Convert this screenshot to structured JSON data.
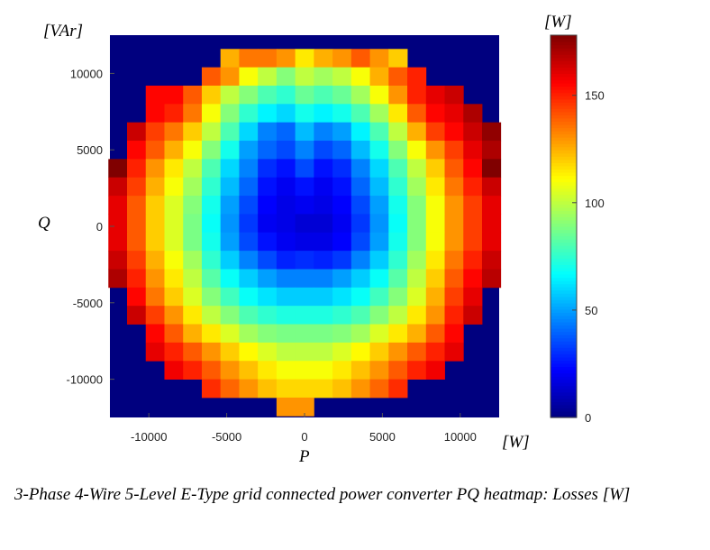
{
  "caption": "3-Phase 4-Wire 5-Level E-Type grid connected power converter PQ heatmap: Losses [W]",
  "chart_data": {
    "type": "heatmap",
    "title": "",
    "xlabel": "P",
    "ylabel": "Q",
    "x_unit": "[W]",
    "y_unit": "[VAr]",
    "colorbar_unit": "[W]",
    "colormap": "jet",
    "background_color": "#00007f",
    "xlim": [
      -12500,
      12500
    ],
    "ylim": [
      -12500,
      12500
    ],
    "x_ticks": [
      -10000,
      -5000,
      0,
      5000,
      10000
    ],
    "y_ticks": [
      -10000,
      -5000,
      0,
      5000,
      10000
    ],
    "x_tick_labels": [
      "-10000",
      "-5000",
      "0",
      "5000",
      "10000"
    ],
    "y_tick_labels": [
      "-10000",
      "-5000",
      "0",
      "5000",
      "10000"
    ],
    "colorbar_range": [
      0,
      178
    ],
    "colorbar_ticks": [
      0,
      50,
      100,
      150
    ],
    "colorbar_tick_labels": [
      "0",
      "50",
      "100",
      "150"
    ],
    "x": [
      -12000,
      -10800,
      -9600,
      -8400,
      -7200,
      -6000,
      -4800,
      -3600,
      -2400,
      -1200,
      0,
      1200,
      2400,
      3600,
      4800,
      6000,
      7200,
      8400,
      9600,
      10800,
      12000
    ],
    "y": [
      11000,
      9800,
      8600,
      7400,
      6200,
      5000,
      3800,
      2600,
      1400,
      200,
      -1000,
      -2200,
      -3400,
      -4600,
      -5800,
      -7000,
      -8200,
      -9400,
      -10600,
      -11800
    ],
    "values": [
      [
        null,
        null,
        null,
        null,
        null,
        null,
        125,
        135,
        135,
        130,
        115,
        125,
        130,
        140,
        130,
        120,
        null,
        null,
        null,
        null,
        null
      ],
      [
        null,
        null,
        null,
        null,
        null,
        140,
        130,
        110,
        100,
        90,
        100,
        95,
        100,
        110,
        125,
        140,
        150,
        null,
        null,
        null,
        null
      ],
      [
        null,
        null,
        155,
        155,
        140,
        120,
        100,
        90,
        80,
        75,
        85,
        80,
        85,
        95,
        110,
        130,
        150,
        160,
        165,
        null,
        null
      ],
      [
        null,
        null,
        155,
        150,
        135,
        110,
        90,
        75,
        65,
        60,
        70,
        65,
        70,
        80,
        95,
        115,
        140,
        155,
        160,
        170,
        null
      ],
      [
        null,
        165,
        145,
        135,
        120,
        100,
        80,
        60,
        45,
        40,
        55,
        45,
        50,
        65,
        80,
        100,
        125,
        145,
        155,
        165,
        175
      ],
      [
        null,
        155,
        140,
        125,
        110,
        90,
        70,
        50,
        40,
        35,
        45,
        35,
        40,
        55,
        70,
        90,
        110,
        130,
        145,
        160,
        170
      ],
      [
        180,
        150,
        130,
        115,
        100,
        80,
        60,
        45,
        30,
        25,
        35,
        25,
        30,
        45,
        60,
        80,
        100,
        120,
        140,
        155,
        180
      ],
      [
        165,
        145,
        125,
        110,
        95,
        75,
        55,
        40,
        25,
        20,
        25,
        20,
        25,
        40,
        55,
        75,
        95,
        115,
        135,
        150,
        165
      ],
      [
        160,
        140,
        120,
        105,
        90,
        70,
        50,
        35,
        22,
        18,
        20,
        18,
        22,
        35,
        50,
        70,
        90,
        110,
        130,
        145,
        160
      ],
      [
        160,
        140,
        120,
        105,
        88,
        68,
        48,
        32,
        20,
        18,
        15,
        15,
        20,
        32,
        48,
        68,
        90,
        110,
        130,
        145,
        160
      ],
      [
        160,
        140,
        120,
        105,
        88,
        70,
        50,
        35,
        25,
        20,
        18,
        18,
        22,
        35,
        50,
        70,
        90,
        110,
        130,
        145,
        160
      ],
      [
        165,
        145,
        125,
        110,
        95,
        75,
        58,
        45,
        35,
        28,
        30,
        28,
        32,
        45,
        58,
        75,
        95,
        115,
        135,
        150,
        165
      ],
      [
        170,
        150,
        130,
        115,
        100,
        82,
        68,
        58,
        50,
        45,
        45,
        45,
        50,
        58,
        68,
        82,
        100,
        120,
        140,
        155,
        168
      ],
      [
        null,
        155,
        135,
        120,
        105,
        90,
        78,
        68,
        62,
        58,
        58,
        58,
        62,
        68,
        78,
        90,
        105,
        125,
        145,
        160,
        null
      ],
      [
        null,
        165,
        145,
        130,
        115,
        100,
        90,
        80,
        75,
        72,
        72,
        72,
        75,
        80,
        90,
        100,
        115,
        130,
        150,
        165,
        null
      ],
      [
        null,
        null,
        155,
        140,
        125,
        115,
        105,
        95,
        90,
        88,
        88,
        88,
        90,
        95,
        105,
        115,
        125,
        140,
        155,
        null,
        null
      ],
      [
        null,
        null,
        160,
        150,
        140,
        130,
        120,
        112,
        105,
        100,
        100,
        100,
        105,
        112,
        120,
        130,
        140,
        150,
        160,
        null,
        null
      ],
      [
        null,
        null,
        null,
        158,
        150,
        140,
        130,
        122,
        115,
        110,
        110,
        110,
        115,
        122,
        130,
        140,
        150,
        158,
        null,
        null,
        null
      ],
      [
        null,
        null,
        null,
        null,
        null,
        148,
        138,
        130,
        122,
        118,
        118,
        118,
        122,
        130,
        138,
        148,
        null,
        null,
        null,
        null,
        null
      ],
      [
        null,
        null,
        null,
        null,
        null,
        null,
        null,
        null,
        null,
        130,
        130,
        null,
        null,
        null,
        null,
        null,
        null,
        null,
        null,
        null,
        null
      ]
    ]
  }
}
